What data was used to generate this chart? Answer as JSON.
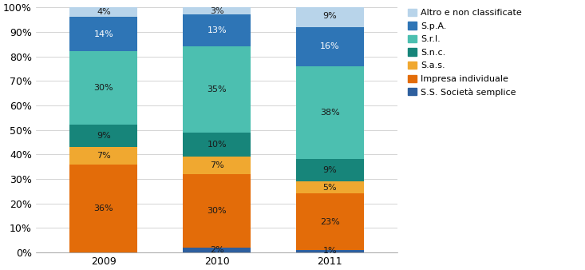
{
  "years": [
    "2009",
    "2010",
    "2011"
  ],
  "categories": [
    "S.S. Società semplice",
    "Impresa individuale",
    "S.a.s.",
    "S.n.c.",
    "S.r.l.",
    "S.p.A.",
    "Altro e non classificate"
  ],
  "values": {
    "S.S. Società semplice": [
      0,
      2,
      1
    ],
    "Impresa individuale": [
      36,
      30,
      23
    ],
    "S.a.s.": [
      7,
      7,
      5
    ],
    "S.n.c.": [
      9,
      10,
      9
    ],
    "S.r.l.": [
      30,
      35,
      38
    ],
    "S.p.A.": [
      14,
      13,
      16
    ],
    "Altro e non classificate": [
      4,
      3,
      9
    ]
  },
  "colors": {
    "S.S. Società semplice": "#2e5f9e",
    "Impresa individuale": "#e36c09",
    "S.a.s.": "#f0a830",
    "S.n.c.": "#17857a",
    "S.r.l.": "#4cbfb0",
    "S.p.A.": "#2e75b6",
    "Altro e non classificate": "#b8d4ea"
  },
  "text_colors": {
    "S.S. Società semplice": "#1a1a1a",
    "Impresa individuale": "#1a1a1a",
    "S.a.s.": "#1a1a1a",
    "S.n.c.": "#1a1a1a",
    "S.r.l.": "#1a1a1a",
    "S.p.A.": "#ffffff",
    "Altro e non classificate": "#1a1a1a"
  },
  "ylim": [
    0,
    100
  ],
  "yticks": [
    0,
    10,
    20,
    30,
    40,
    50,
    60,
    70,
    80,
    90,
    100
  ],
  "ytick_labels": [
    "0%",
    "10%",
    "20%",
    "30%",
    "40%",
    "50%",
    "60%",
    "70%",
    "80%",
    "90%",
    "100%"
  ],
  "bar_width": 0.6,
  "figsize": [
    7.33,
    3.38
  ],
  "dpi": 100
}
